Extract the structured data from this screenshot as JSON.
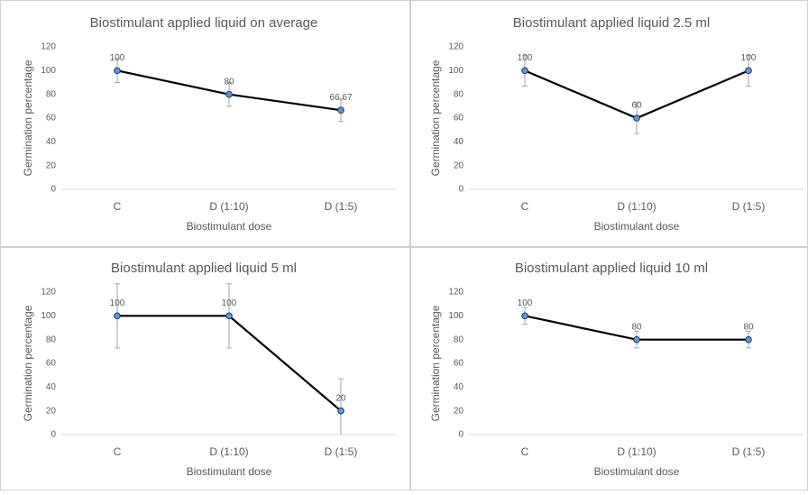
{
  "chart_data": [
    {
      "type": "line",
      "title": "Biostimulant applied liquid on average",
      "x_label": "Biostimulant dose",
      "y_label": "Germination percentage",
      "categories": [
        "C",
        "D (1:10)",
        "D (1:5)"
      ],
      "values": [
        100,
        80,
        66.67
      ],
      "value_labels": [
        "100",
        "80",
        "66,67"
      ],
      "errors": [
        10,
        10,
        9.5
      ],
      "color": "#000000",
      "marker_color": "#5b9bd5",
      "ylim": [
        0,
        120
      ],
      "yticks": [
        0,
        20,
        40,
        60,
        80,
        100,
        120
      ]
    },
    {
      "type": "line",
      "title": "Biostimulant applied liquid 2.5 ml",
      "x_label": "Biostimulant dose",
      "y_label": "Germination percentage",
      "categories": [
        "C",
        "D (1:10)",
        "D (1:5)"
      ],
      "values": [
        100,
        60,
        100
      ],
      "errors": [
        13,
        13,
        13
      ],
      "color": "#000000",
      "marker_color": "#5b9bd5",
      "ylim": [
        0,
        120
      ],
      "yticks": [
        0,
        20,
        40,
        60,
        80,
        100,
        120
      ]
    },
    {
      "type": "line",
      "title": "Biostimulant applied liquid 5 ml",
      "x_label": "Biostimulant dose",
      "y_label": "Germination percentage",
      "categories": [
        "C",
        "D (1:10)",
        "D (1:5)"
      ],
      "values": [
        100,
        100,
        20
      ],
      "errors": [
        27,
        27,
        27
      ],
      "color": "#000000",
      "marker_color": "#5b9bd5",
      "ylim": [
        0,
        120
      ],
      "yticks": [
        0,
        20,
        40,
        60,
        80,
        100,
        120
      ]
    },
    {
      "type": "line",
      "title": "Biostimulant applied liquid 10 ml",
      "x_label": "Biostimulant dose",
      "y_label": "Germination percentage",
      "categories": [
        "C",
        "D (1:10)",
        "D (1:5)"
      ],
      "values": [
        100,
        80,
        80
      ],
      "errors": [
        7,
        7,
        7
      ],
      "color": "#000000",
      "marker_color": "#5b9bd5",
      "ylim": [
        0,
        120
      ],
      "yticks": [
        0,
        20,
        40,
        60,
        80,
        100,
        120
      ]
    }
  ]
}
